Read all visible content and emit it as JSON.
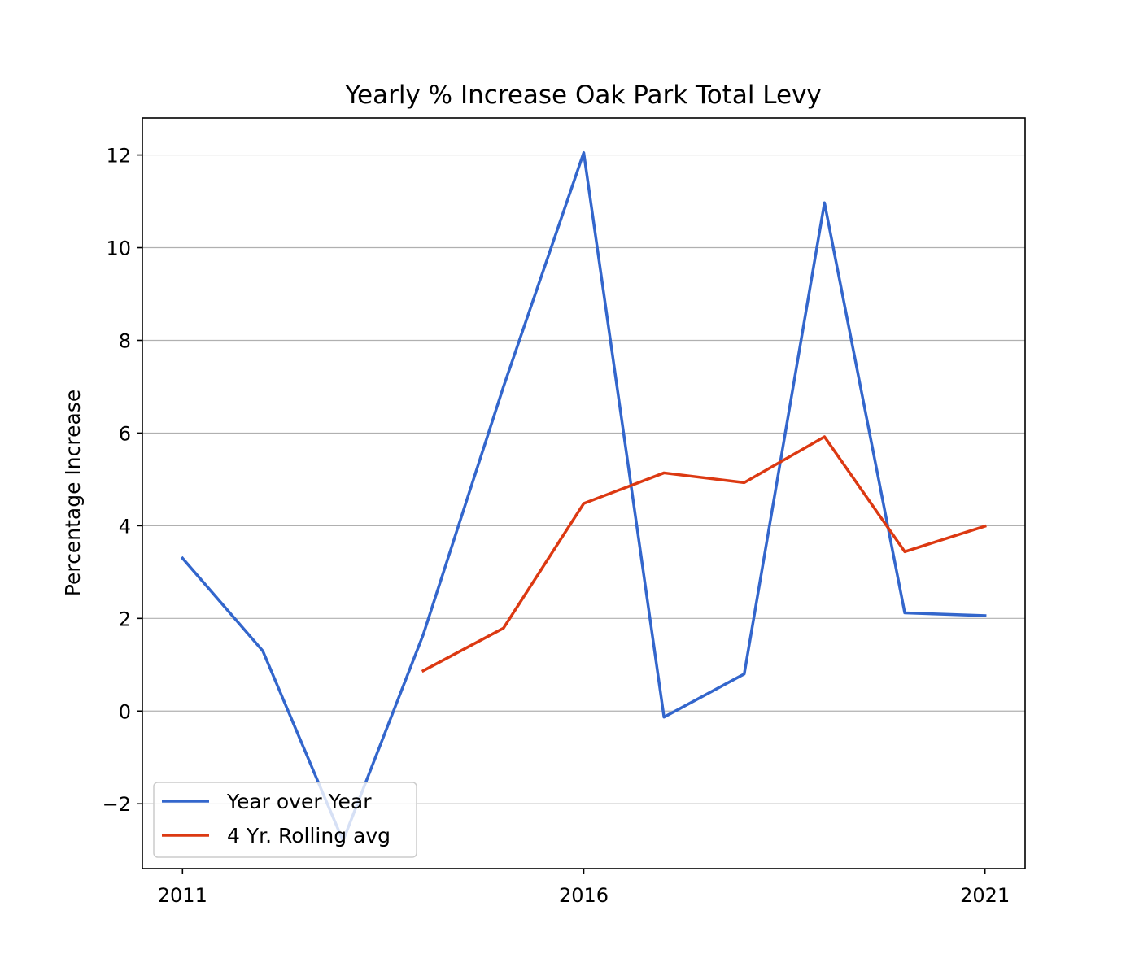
{
  "chart_data": {
    "type": "line",
    "title": "Yearly % Increase Oak Park Total Levy",
    "xlabel": "",
    "ylabel": "Percentage Increase",
    "x": [
      2011,
      2012,
      2013,
      2014,
      2015,
      2016,
      2017,
      2018,
      2019,
      2020,
      2021
    ],
    "xlim": [
      2010.5,
      2021.5
    ],
    "ylim": [
      -3.4,
      12.8
    ],
    "x_ticks": [
      2011,
      2016,
      2021
    ],
    "x_tick_labels": [
      "2011",
      "2016",
      "2021"
    ],
    "y_ticks": [
      -2,
      0,
      2,
      4,
      6,
      8,
      10,
      12
    ],
    "y_tick_labels": [
      "−2",
      "0",
      "2",
      "4",
      "6",
      "8",
      "10",
      "12"
    ],
    "grid": "y-major",
    "legend_position": "lower-left",
    "series": [
      {
        "name": "Year over Year",
        "color": "#3366cc",
        "values": [
          3.3,
          1.3,
          -2.8,
          1.65,
          7.0,
          12.05,
          -0.13,
          0.8,
          10.97,
          2.12,
          2.06
        ]
      },
      {
        "name": "4 Yr. Rolling avg",
        "color": "#dc3912",
        "values": [
          null,
          null,
          null,
          0.87,
          1.79,
          4.48,
          5.14,
          4.93,
          5.92,
          3.44,
          3.99
        ]
      }
    ]
  }
}
